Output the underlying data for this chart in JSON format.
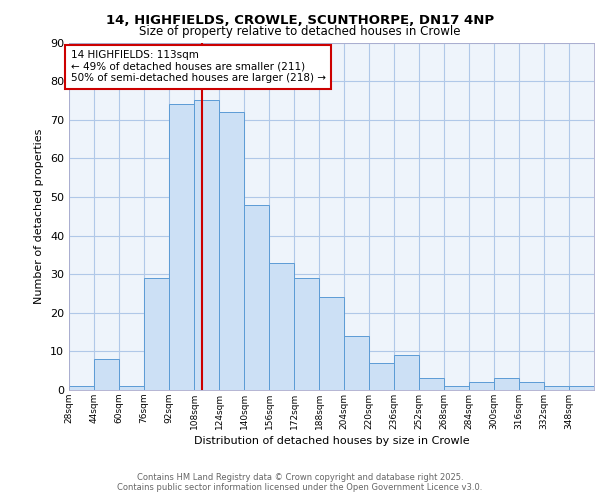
{
  "title1": "14, HIGHFIELDS, CROWLE, SCUNTHORPE, DN17 4NP",
  "title2": "Size of property relative to detached houses in Crowle",
  "xlabel": "Distribution of detached houses by size in Crowle",
  "ylabel": "Number of detached properties",
  "bin_starts": [
    28,
    44,
    60,
    76,
    92,
    108,
    124,
    140,
    156,
    172,
    188,
    204,
    220,
    236,
    252,
    268,
    284,
    300,
    316,
    332,
    348
  ],
  "counts": [
    1,
    8,
    1,
    29,
    74,
    75,
    72,
    48,
    33,
    29,
    24,
    14,
    7,
    9,
    3,
    1,
    2,
    3,
    2,
    1,
    1
  ],
  "bin_width": 16,
  "bar_facecolor": "#cce0f5",
  "bar_edgecolor": "#5b9bd5",
  "vline_x": 113,
  "vline_color": "#cc0000",
  "annotation_text": "14 HIGHFIELDS: 113sqm\n← 49% of detached houses are smaller (211)\n50% of semi-detached houses are larger (218) →",
  "annotation_box_edgecolor": "#cc0000",
  "grid_color": "#b0c8e8",
  "background_color": "#eef4fb",
  "footer_text": "Contains HM Land Registry data © Crown copyright and database right 2025.\nContains public sector information licensed under the Open Government Licence v3.0.",
  "ylim": [
    0,
    90
  ],
  "yticks": [
    0,
    10,
    20,
    30,
    40,
    50,
    60,
    70,
    80,
    90
  ],
  "tick_labels": [
    "28sqm",
    "44sqm",
    "60sqm",
    "76sqm",
    "92sqm",
    "108sqm",
    "124sqm",
    "140sqm",
    "156sqm",
    "172sqm",
    "188sqm",
    "204sqm",
    "220sqm",
    "236sqm",
    "252sqm",
    "268sqm",
    "284sqm",
    "300sqm",
    "316sqm",
    "332sqm",
    "348sqm"
  ]
}
